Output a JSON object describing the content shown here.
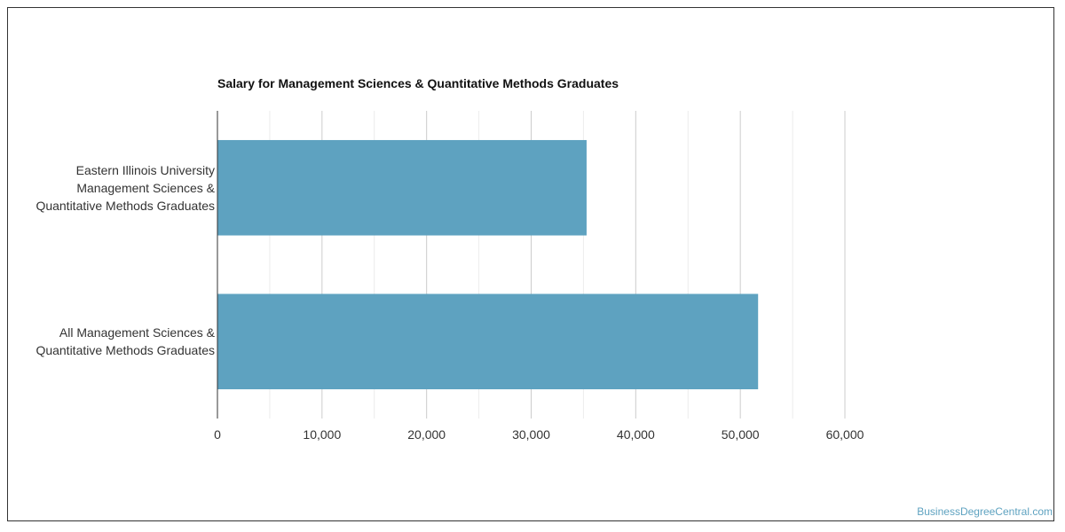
{
  "chart_data": {
    "type": "bar",
    "orientation": "horizontal",
    "title": "Salary for Management Sciences & Quantitative Methods Graduates",
    "categories": [
      "Eastern Illinois University\nManagement Sciences &\nQuantitative Methods Graduates",
      "All Management Sciences &\nQuantitative Methods Graduates"
    ],
    "values": [
      35300,
      51700
    ],
    "xlim": [
      0,
      60000
    ],
    "xticks": [
      0,
      10000,
      20000,
      30000,
      40000,
      50000,
      60000
    ],
    "xtick_labels": [
      "0",
      "10,000",
      "20,000",
      "30,000",
      "40,000",
      "50,000",
      "60,000"
    ],
    "minor_grid_step": 5000,
    "grid": true,
    "legend": "none",
    "bar_color": "#5ea2c0"
  },
  "footer": {
    "credit": "BusinessDegreeCentral.com"
  }
}
